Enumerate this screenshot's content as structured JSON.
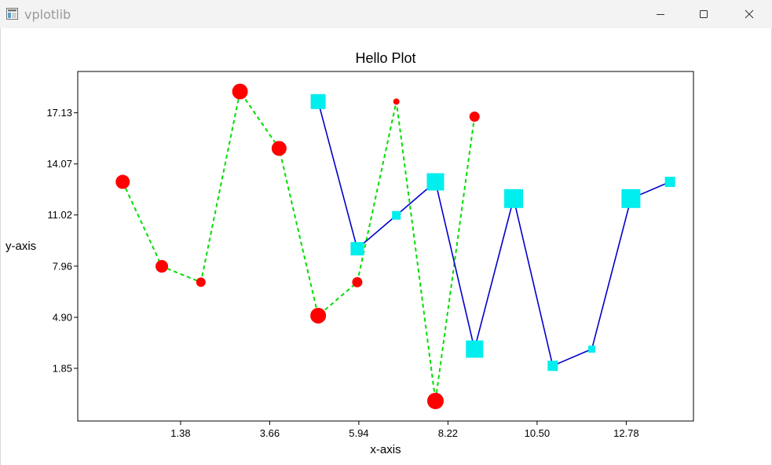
{
  "window": {
    "title": "vplotlib",
    "icons": {
      "app": "app-window-icon",
      "minimize": "minimize-icon",
      "maximize": "maximize-icon",
      "close": "close-icon"
    }
  },
  "chart_data": {
    "type": "line",
    "title": "Hello Plot",
    "xlabel": "x-axis",
    "ylabel": "y-axis",
    "xlim": [
      -1.25,
      14.5
    ],
    "ylim": [
      -1.3,
      19.6
    ],
    "xticks": [
      1.38,
      3.66,
      5.94,
      8.22,
      10.5,
      12.78
    ],
    "xtick_labels": [
      "1.38",
      "3.66",
      "5.94",
      "8.22",
      "10.50",
      "12.78"
    ],
    "yticks": [
      1.85,
      4.9,
      7.96,
      11.02,
      14.07,
      17.13
    ],
    "ytick_labels": [
      "1.85",
      "4.90",
      "7.96",
      "11.02",
      "14.07",
      "17.13"
    ],
    "grid": false,
    "series": [
      {
        "line_style": "dashed",
        "line_color": "#00dd00",
        "marker": "circle",
        "marker_color": "#ff0000",
        "points": [
          {
            "x": -0.1,
            "y": 13.0,
            "size": 9
          },
          {
            "x": 0.9,
            "y": 7.95,
            "size": 8
          },
          {
            "x": 1.9,
            "y": 7.0,
            "size": 6
          },
          {
            "x": 2.9,
            "y": 18.4,
            "size": 10
          },
          {
            "x": 3.9,
            "y": 15.0,
            "size": 9.5
          },
          {
            "x": 4.9,
            "y": 5.0,
            "size": 10
          },
          {
            "x": 5.9,
            "y": 7.0,
            "size": 6.5
          },
          {
            "x": 6.9,
            "y": 17.8,
            "size": 4
          },
          {
            "x": 7.9,
            "y": -0.1,
            "size": 10.5
          },
          {
            "x": 8.9,
            "y": 16.9,
            "size": 6.5
          }
        ]
      },
      {
        "line_style": "solid",
        "line_color": "#0000cc",
        "marker": "square",
        "marker_color": "#00eeee",
        "points": [
          {
            "x": 4.9,
            "y": 17.8,
            "size": 19
          },
          {
            "x": 5.9,
            "y": 9.0,
            "size": 17
          },
          {
            "x": 6.9,
            "y": 11.0,
            "size": 11
          },
          {
            "x": 7.9,
            "y": 13.0,
            "size": 22
          },
          {
            "x": 8.9,
            "y": 3.0,
            "size": 22
          },
          {
            "x": 9.9,
            "y": 12.0,
            "size": 24
          },
          {
            "x": 10.9,
            "y": 2.0,
            "size": 13
          },
          {
            "x": 11.9,
            "y": 3.0,
            "size": 9
          },
          {
            "x": 12.9,
            "y": 12.0,
            "size": 24
          },
          {
            "x": 13.9,
            "y": 13.0,
            "size": 13
          }
        ]
      }
    ]
  }
}
